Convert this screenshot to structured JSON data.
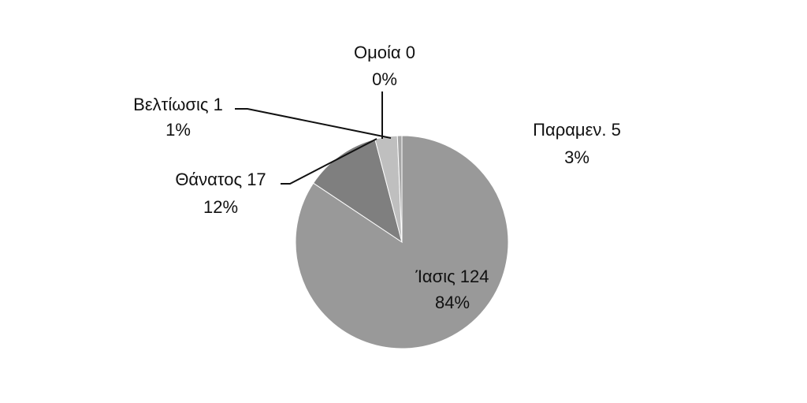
{
  "chart_data": {
    "type": "pie",
    "title": "",
    "slices": [
      {
        "label": "Ίασις",
        "value": 124,
        "percent": "84%",
        "color": "#999999"
      },
      {
        "label": "Θάνατος",
        "value": 17,
        "percent": "12%",
        "color": "#7f7f7f"
      },
      {
        "label": "Παραμεν.",
        "value": 5,
        "percent": "3%",
        "color": "#bfbfbf"
      },
      {
        "label": "Βελτίωσις",
        "value": 1,
        "percent": "1%",
        "color": "#a6a6a6"
      },
      {
        "label": "Ομοία",
        "value": 0,
        "percent": "0%",
        "color": "#d9d9d9"
      }
    ],
    "data_labels": [
      {
        "line1": "Ίασις 124",
        "line2": "84%"
      },
      {
        "line1": "Θάνατος 17",
        "line2": "12%"
      },
      {
        "line1": "Παραμεν. 5",
        "line2": "3%"
      },
      {
        "line1": "Βελτίωσις 1",
        "line2": "1%"
      },
      {
        "line1": "Ομοία 0",
        "line2": "0%"
      }
    ],
    "legend": "none"
  }
}
